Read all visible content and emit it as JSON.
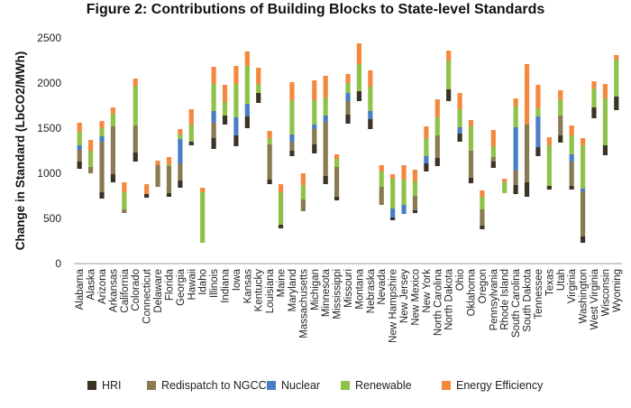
{
  "chart_data": {
    "type": "bar",
    "stacked": true,
    "title": "Figure 2: Contributions of Building Blocks to State-level Standards",
    "xlabel": "",
    "ylabel": "Change in Standard (LbCO2/MWh)",
    "ylim": [
      0,
      2500
    ],
    "yticks": [
      0,
      500,
      1000,
      1500,
      2000,
      2500
    ],
    "grid": false,
    "legend_position": "bottom",
    "categories": [
      "Alabama",
      "Alaska",
      "Arizona",
      "Arkansas",
      "California",
      "Colorado",
      "Connecticut",
      "Delaware",
      "Florida",
      "Georgia",
      "Hawaii",
      "Idaho",
      "Illinois",
      "Indiana",
      "Iowa",
      "Kansas",
      "Kentucky",
      "Louisiana",
      "Maine",
      "Maryland",
      "Massachusetts",
      "Michigan",
      "Minnesota",
      "Mississippi",
      "Missouri",
      "Montana",
      "Nebraska",
      "Nevada",
      "New Hampshire",
      "New Jersey",
      "New Mexico",
      "New York",
      "North Carolina",
      "North Dakota",
      "Ohio",
      "Oklahoma",
      "Oregon",
      "Pennsylvania",
      "Rhode Island",
      "South Carolina",
      "South Dakota",
      "Tennessee",
      "Texas",
      "Utah",
      "Virginia",
      "Washington",
      "West Virginia",
      "Wisconsin",
      "Wyoming"
    ],
    "base": [
      1050,
      1000,
      720,
      900,
      560,
      1130,
      730,
      850,
      740,
      840,
      1310,
      230,
      1270,
      1540,
      1300,
      1500,
      1780,
      880,
      390,
      1190,
      580,
      1220,
      880,
      700,
      1550,
      1800,
      1490,
      650,
      480,
      550,
      560,
      1020,
      1080,
      1800,
      1350,
      890,
      380,
      1060,
      780,
      770,
      740,
      1190,
      820,
      1340,
      820,
      230,
      1610,
      1200,
      1700
    ],
    "series": [
      {
        "name": "HRI",
        "color": "#3b3325",
        "values": [
          80,
          0,
          70,
          90,
          0,
          100,
          40,
          0,
          40,
          80,
          40,
          0,
          120,
          100,
          120,
          130,
          110,
          50,
          40,
          60,
          0,
          100,
          90,
          40,
          100,
          110,
          110,
          0,
          30,
          0,
          30,
          90,
          90,
          130,
          90,
          60,
          40,
          70,
          0,
          100,
          160,
          100,
          40,
          80,
          40,
          70,
          120,
          110,
          150
        ]
      },
      {
        "name": "Redispatch to NGCC",
        "color": "#8a7a52",
        "values": [
          130,
          70,
          560,
          530,
          40,
          300,
          0,
          240,
          300,
          190,
          0,
          0,
          170,
          0,
          0,
          0,
          0,
          390,
          0,
          100,
          130,
          170,
          600,
          330,
          150,
          0,
          0,
          200,
          0,
          0,
          160,
          0,
          250,
          0,
          0,
          300,
          180,
          50,
          0,
          160,
          640,
          0,
          0,
          220,
          270,
          500,
          0,
          0,
          0
        ]
      },
      {
        "name": "Nuclear",
        "color": "#4a7ec4",
        "values": [
          50,
          0,
          60,
          0,
          0,
          0,
          0,
          0,
          0,
          270,
          0,
          0,
          130,
          0,
          200,
          140,
          0,
          0,
          0,
          80,
          0,
          50,
          70,
          0,
          90,
          0,
          90,
          0,
          100,
          100,
          0,
          80,
          0,
          0,
          70,
          0,
          0,
          0,
          0,
          480,
          0,
          340,
          0,
          0,
          80,
          30,
          0,
          0,
          0
        ]
      },
      {
        "name": "Renewable",
        "color": "#8fc24a",
        "values": [
          150,
          180,
          90,
          140,
          190,
          440,
          0,
          0,
          20,
          50,
          190,
          560,
          300,
          150,
          370,
          420,
          100,
          70,
          360,
          380,
          160,
          270,
          200,
          90,
          110,
          300,
          270,
          170,
          330,
          280,
          160,
          200,
          200,
          320,
          200,
          270,
          140,
          120,
          120,
          230,
          0,
          90,
          450,
          170,
          210,
          480,
          210,
          520,
          410
        ]
      },
      {
        "name": "Energy Efficiency",
        "color": "#f5883c",
        "values": [
          100,
          120,
          80,
          70,
          110,
          80,
          110,
          50,
          80,
          60,
          170,
          50,
          190,
          190,
          200,
          160,
          180,
          80,
          90,
          200,
          130,
          220,
          240,
          50,
          100,
          230,
          180,
          70,
          50,
          160,
          130,
          130,
          200,
          110,
          180,
          70,
          70,
          180,
          40,
          90,
          670,
          260,
          90,
          110,
          110,
          80,
          80,
          160,
          50
        ]
      }
    ]
  }
}
